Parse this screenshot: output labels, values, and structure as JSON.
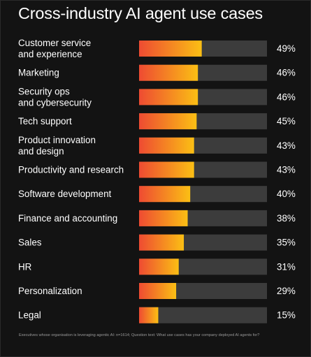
{
  "chart_data": {
    "type": "bar",
    "orientation": "horizontal",
    "title": "Cross-industry AI agent use cases",
    "categories": [
      [
        "Customer service",
        "and experience"
      ],
      [
        "Marketing"
      ],
      [
        "Security ops",
        "and cybersecurity"
      ],
      [
        "Tech support"
      ],
      [
        "Product innovation",
        "and design"
      ],
      [
        "Productivity and research"
      ],
      [
        "Software development"
      ],
      [
        "Finance and accounting"
      ],
      [
        "Sales"
      ],
      [
        "HR"
      ],
      [
        "Personalization"
      ],
      [
        "Legal"
      ]
    ],
    "values": [
      49,
      46,
      46,
      45,
      43,
      43,
      40,
      38,
      35,
      31,
      29,
      15
    ],
    "value_labels": [
      "49%",
      "46%",
      "46%",
      "45%",
      "43%",
      "43%",
      "40%",
      "38%",
      "35%",
      "31%",
      "29%",
      "15%"
    ],
    "xlim": [
      0,
      100
    ],
    "unit": "%",
    "grid": false,
    "legend": "none",
    "footnote": "Executives whose organisation is leveraging agentic AI: n=1614; Question text: What use cases has your company deployed AI agents for?"
  },
  "colors": {
    "background": "#131313",
    "track": "#3c3c3c",
    "bar_gradient_start": "#ee4b32",
    "bar_gradient_end": "#fbbf14",
    "text": "#ffffff",
    "footnote": "#9a9a9a"
  }
}
